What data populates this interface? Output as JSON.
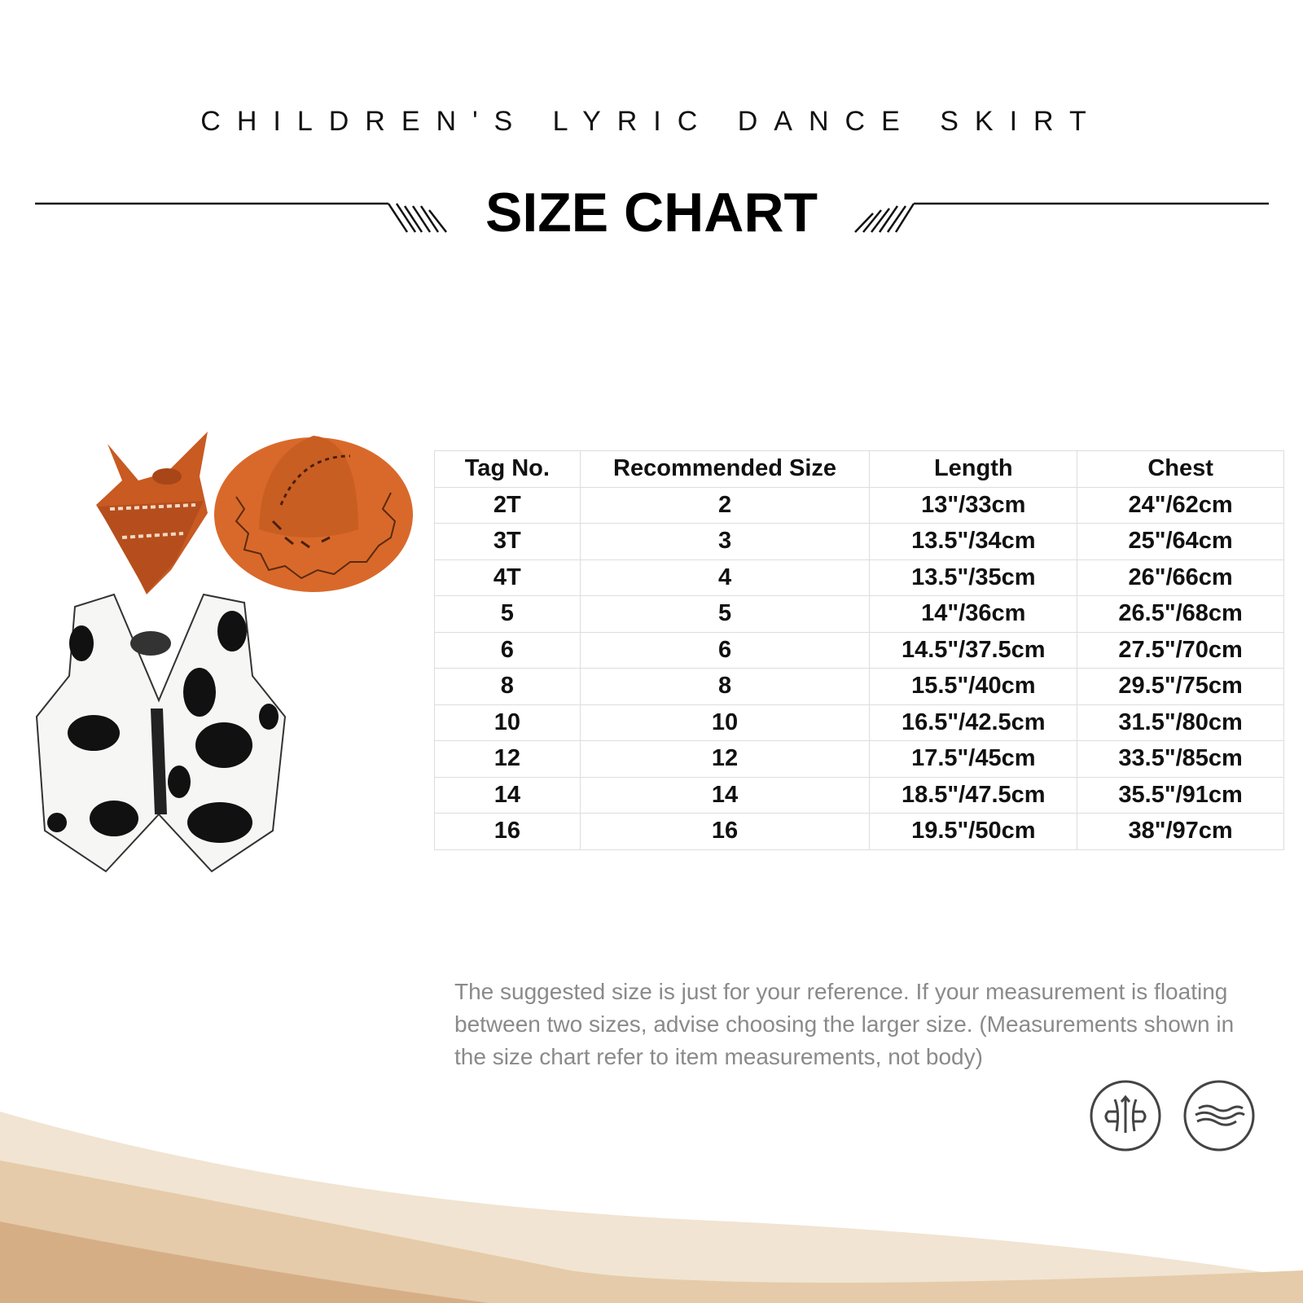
{
  "header": {
    "subtitle": "CHILDREN'S LYRIC DANCE SKIRT",
    "title": "SIZE CHART"
  },
  "table": {
    "columns": [
      "Tag No.",
      "Recommended Size",
      "Length",
      "Chest"
    ],
    "rows": [
      [
        "2T",
        "2",
        "13\"/33cm",
        "24\"/62cm"
      ],
      [
        "3T",
        "3",
        "13.5\"/34cm",
        "25\"/64cm"
      ],
      [
        "4T",
        "4",
        "13.5\"/35cm",
        "26\"/66cm"
      ],
      [
        "5",
        "5",
        "14\"/36cm",
        "26.5\"/68cm"
      ],
      [
        "6",
        "6",
        "14.5\"/37.5cm",
        "27.5\"/70cm"
      ],
      [
        "8",
        "8",
        "15.5\"/40cm",
        "29.5\"/75cm"
      ],
      [
        "10",
        "10",
        "16.5\"/42.5cm",
        "31.5\"/80cm"
      ],
      [
        "12",
        "12",
        "17.5\"/45cm",
        "33.5\"/85cm"
      ],
      [
        "14",
        "14",
        "18.5\"/47.5cm",
        "35.5\"/91cm"
      ],
      [
        "16",
        "16",
        "19.5\"/50cm",
        "38\"/97cm"
      ]
    ]
  },
  "note": "The suggested size is just for your reference. If your measurement is floating between two sizes, advise choosing the larger size. (Measurements shown in the size chart refer to item measurements, not body)",
  "icons": [
    "stretch-fabric-icon",
    "soft-wave-fabric-icon"
  ],
  "colors": {
    "hat": "#d9692a",
    "bandana": "#c85a22",
    "wave_light": "#ecdcc6",
    "wave_dark": "#d6b08a"
  }
}
